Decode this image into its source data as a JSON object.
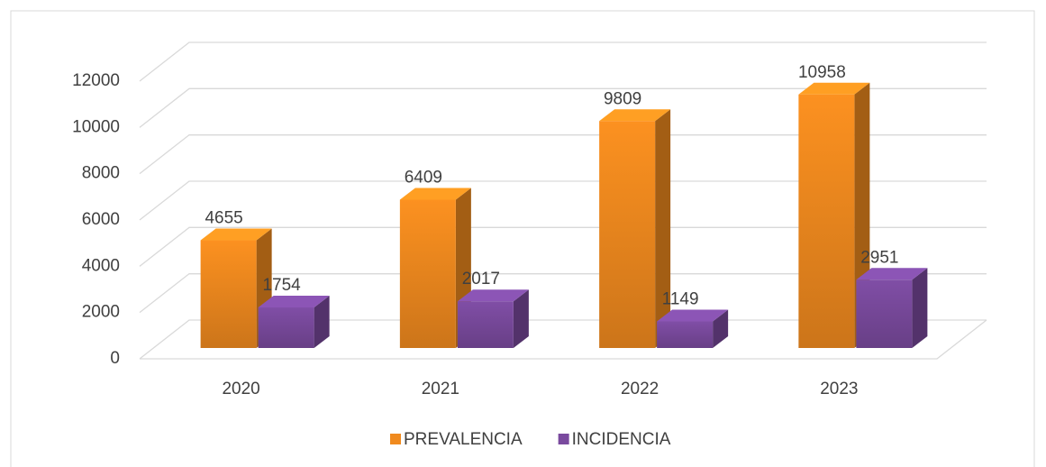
{
  "chart_data": {
    "type": "bar",
    "categories": [
      "2020",
      "2021",
      "2022",
      "2023"
    ],
    "series": [
      {
        "name": "PREVALENCIA",
        "color": "#f08a1e",
        "values": [
          4655,
          6409,
          9809,
          10958
        ]
      },
      {
        "name": "INCIDENCIA",
        "color": "#7a4a9e",
        "values": [
          1754,
          2017,
          1149,
          2951
        ]
      }
    ],
    "ylim": [
      0,
      12000
    ],
    "yticks": [
      0,
      2000,
      4000,
      6000,
      8000,
      10000,
      12000
    ],
    "grid": true
  }
}
